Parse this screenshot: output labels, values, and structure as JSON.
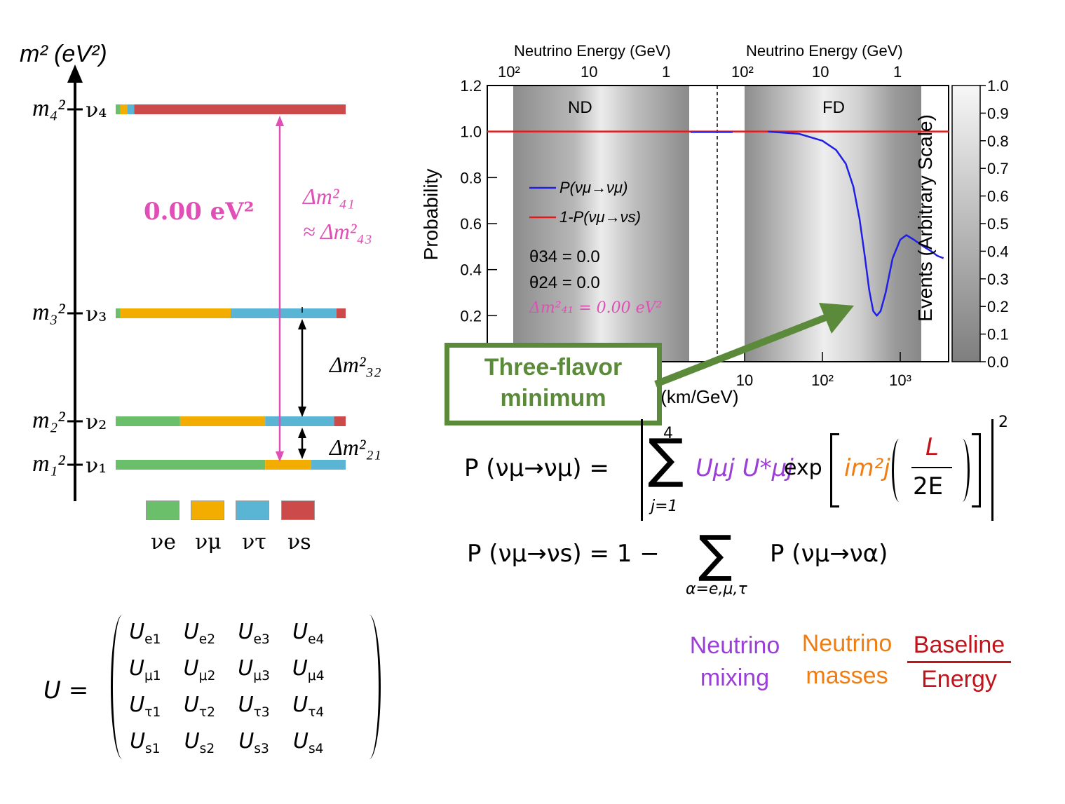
{
  "level_diagram": {
    "axis_label": "m² (eV²)",
    "levels": [
      {
        "mass": "m₄²",
        "state": "ν₄",
        "composition": [
          0.02,
          0.03,
          0.03,
          0.92
        ]
      },
      {
        "mass": "m₃²",
        "state": "ν₃",
        "composition": [
          0.02,
          0.48,
          0.46,
          0.04
        ]
      },
      {
        "mass": "m₂²",
        "state": "ν₂",
        "composition": [
          0.28,
          0.37,
          0.3,
          0.05
        ]
      },
      {
        "mass": "m₁²",
        "state": "ν₁",
        "composition": [
          0.65,
          0.2,
          0.15,
          0.0
        ]
      }
    ],
    "splitting_label": "0.00 eV²",
    "dm41_label": "Δm²₄₁",
    "dm43_label": "≈ Δm²₄₃",
    "dm32_label": "Δm²₃₂",
    "dm21_label": "Δm²₂₁",
    "flavor_legend": [
      {
        "label": "νe",
        "color": "#6bbf6a"
      },
      {
        "label": "νμ",
        "color": "#f2ad00"
      },
      {
        "label": "ντ",
        "color": "#5ab4d4"
      },
      {
        "label": "νs",
        "color": "#cc4a4a"
      }
    ]
  },
  "matrix": {
    "lhs": "U =",
    "rows": [
      [
        "Ue1",
        "Ue2",
        "Ue3",
        "Ue4"
      ],
      [
        "Uμ1",
        "Uμ2",
        "Uμ3",
        "Uμ4"
      ],
      [
        "Uτ1",
        "Uτ2",
        "Uτ3",
        "Uτ4"
      ],
      [
        "Us1",
        "Us2",
        "Us3",
        "Us4"
      ]
    ]
  },
  "chart_data": {
    "type": "line",
    "top_axis_label_nd": "Neutrino Energy (GeV)",
    "top_axis_label_fd": "Neutrino Energy (GeV)",
    "top_ticks_nd": [
      "10²",
      "10",
      "1"
    ],
    "top_ticks_fd": [
      "10²",
      "10",
      "1"
    ],
    "xlabel": "L/E (km/GeV)",
    "x_ticks": [
      "10",
      "10²",
      "10³"
    ],
    "ylabel": "Probability",
    "ylim": [
      0,
      1.2
    ],
    "y_ticks": [
      "0.2",
      "0.4",
      "0.6",
      "0.8",
      "1.0",
      "1.2"
    ],
    "right_axis_label": "Events (Arbitrary Scale)",
    "right_ticks": [
      "0.0",
      "0.1",
      "0.2",
      "0.3",
      "0.4",
      "0.5",
      "0.6",
      "0.7",
      "0.8",
      "0.9",
      "1.0"
    ],
    "region_labels": [
      "ND",
      "FD"
    ],
    "series": [
      {
        "name": "P(νμ→νμ)",
        "color": "#1f1fe6",
        "x": [
          20,
          50,
          100,
          150,
          200,
          250,
          300,
          350,
          400,
          450,
          500,
          560,
          650,
          800,
          1000,
          1200,
          1500,
          2000,
          2500,
          3000,
          3600
        ],
        "y": [
          1.0,
          0.99,
          0.96,
          0.92,
          0.86,
          0.76,
          0.62,
          0.46,
          0.31,
          0.22,
          0.2,
          0.22,
          0.3,
          0.45,
          0.53,
          0.55,
          0.53,
          0.5,
          0.48,
          0.46,
          0.45
        ]
      },
      {
        "name": "1-P(νμ→νs)",
        "color": "#e21b1b",
        "x": [
          0.5,
          3600
        ],
        "y": [
          1.0,
          1.0
        ]
      }
    ],
    "annotations": [
      "θ34 = 0.0",
      "θ24 = 0.0",
      "Δm²₄₁ = 0.00 eV²"
    ],
    "legend_placement": "left-middle"
  },
  "callout": {
    "line1": "Three-flavor",
    "line2": "minimum"
  },
  "formula1": {
    "lhs": "P (νμ→νμ) =",
    "sum_top": "4",
    "sum_bottom": "j=1",
    "mixing": "Uμj U*μj",
    "exp": "exp",
    "mass": "im²j",
    "L": "L",
    "E": "2E",
    "power": "2"
  },
  "formula2": {
    "lhs": "P (νμ→νs) = 1 −",
    "sum_bottom": "α=e,μ,τ",
    "rhs": "P (νμ→να)"
  },
  "key": {
    "mixing": [
      "Neutrino",
      "mixing"
    ],
    "masses": [
      "Neutrino",
      "masses"
    ],
    "baseline_num": "Baseline",
    "baseline_den": "Energy",
    "colors": {
      "mixing": "#9b3fd6",
      "masses": "#f07d12",
      "baseline": "#c0141c"
    }
  }
}
